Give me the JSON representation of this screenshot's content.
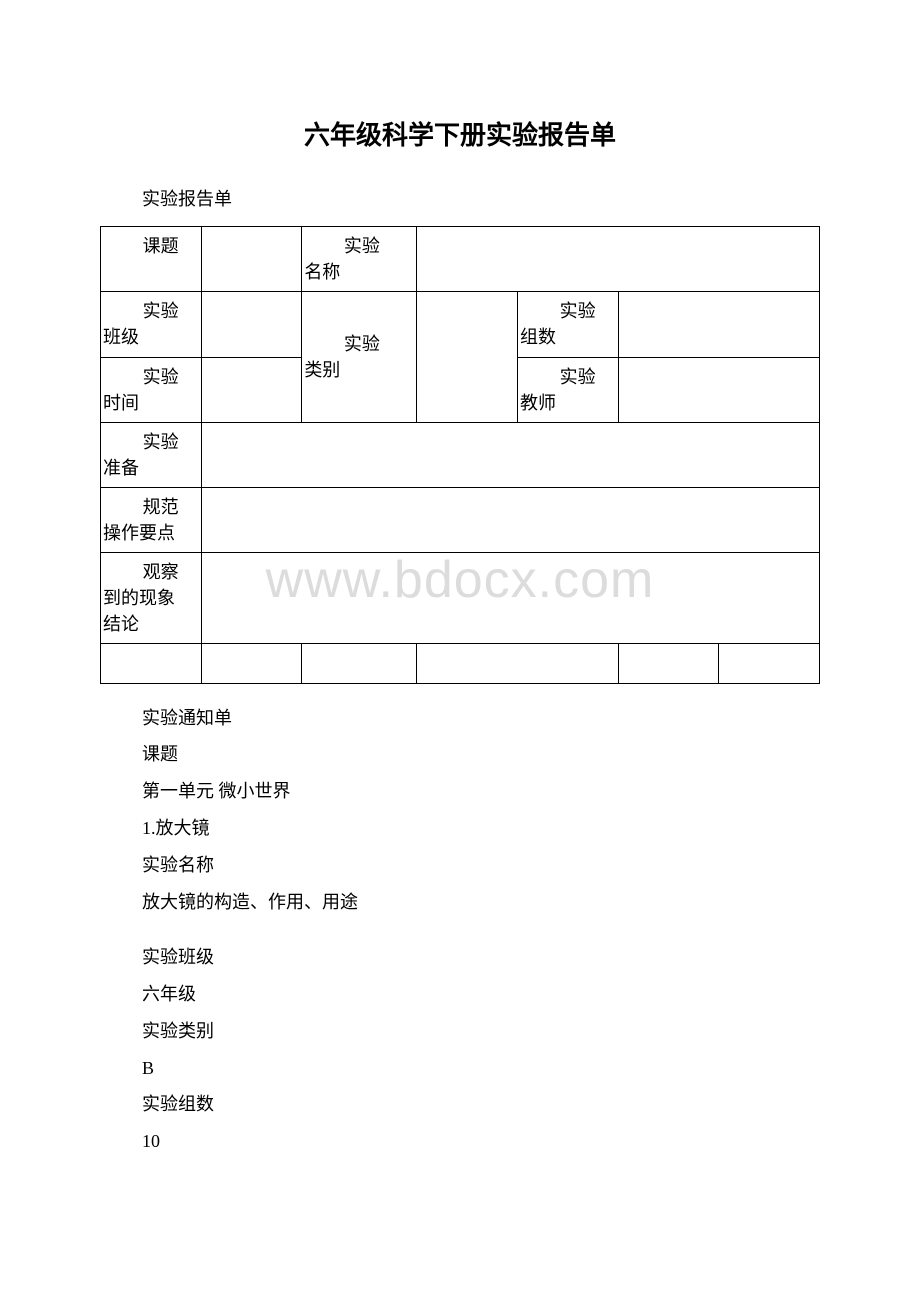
{
  "title": "六年级科学下册实验报告单",
  "section1_label": "实验报告单",
  "watermark": "www.bdocx.com",
  "table": {
    "r1c1a": "课题",
    "r1c1b": "",
    "r1c3a": "实验",
    "r1c3b": "名称",
    "r2c1a": "实验",
    "r2c1b": "班级",
    "r2c3a": "实验",
    "r2c3b": "类别",
    "r2c5a": "实验",
    "r2c5b": "组数",
    "r3c1a": "实验",
    "r3c1b": "时间",
    "r3c5a": "实验",
    "r3c5b": "教师",
    "r4c1a": "实验",
    "r4c1b": "准备",
    "r5c1a": "规范",
    "r5c1b": "操作要点",
    "r6c1a": "观察",
    "r6c1b": "到的现象",
    "r6c1c": "结论"
  },
  "section2_label": "实验通知单",
  "list_items": [
    "课题",
    " 第一单元 微小世界",
    "1.放大镜",
    " 实验名称",
    " 放大镜的构造、作用、用途",
    "",
    "实验班级",
    " 六年级",
    " 实验类别",
    " B",
    " 实验组数",
    " 10"
  ],
  "col_widths": [
    "14%",
    "14%",
    "16%",
    "14%",
    "14%",
    "14%",
    "14%"
  ]
}
